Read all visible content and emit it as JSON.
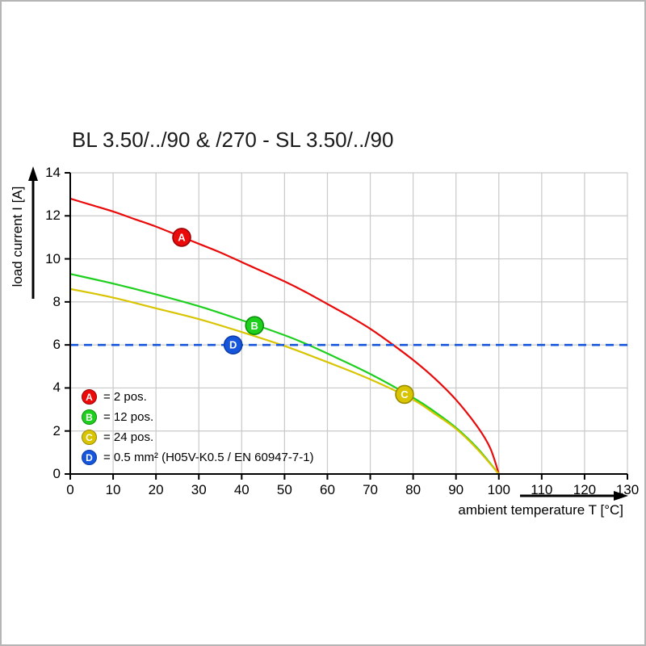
{
  "title": "BL 3.50/../90 & /270 - SL 3.50/../90",
  "axes": {
    "x": {
      "label": "ambient temperature T [°C]"
    },
    "y": {
      "label": "load current I [A]"
    }
  },
  "legend": {
    "items": [
      {
        "key": "A",
        "label": "= 2 pos.",
        "color": "#ea0a0a",
        "edge": "#9e0007"
      },
      {
        "key": "B",
        "label": "= 12 pos.",
        "color": "#1ecf1e",
        "edge": "#0a8f0a"
      },
      {
        "key": "C",
        "label": "= 24 pos.",
        "color": "#d8c400",
        "edge": "#9a8a00"
      },
      {
        "key": "D",
        "label": "= 0.5 mm² (H05V-K0.5 / EN 60947-7-1)",
        "color": "#1556dd",
        "edge": "#0d3da8"
      }
    ]
  },
  "chart_data": {
    "type": "line",
    "title": "BL 3.50/../90 & /270 - SL 3.50/../90",
    "xlabel": "ambient temperature T [°C]",
    "ylabel": "load current I [A]",
    "xlim": [
      0,
      130
    ],
    "ylim": [
      0,
      14
    ],
    "x_ticks": [
      0,
      10,
      20,
      30,
      40,
      50,
      60,
      70,
      80,
      90,
      100,
      110,
      120,
      130
    ],
    "y_ticks": [
      0,
      2,
      4,
      6,
      8,
      10,
      12,
      14
    ],
    "grid": true,
    "grid_color": "#c9c9c9",
    "series": [
      {
        "key": "A",
        "name": "2 pos.",
        "type": "curve",
        "color": "#ea0a0a",
        "edge": "#9e0007",
        "marker_at": [
          26,
          11.0
        ],
        "points": [
          [
            0,
            12.8
          ],
          [
            5,
            12.5
          ],
          [
            10,
            12.2
          ],
          [
            15,
            11.85
          ],
          [
            20,
            11.5
          ],
          [
            25,
            11.1
          ],
          [
            30,
            10.7
          ],
          [
            35,
            10.3
          ],
          [
            40,
            9.85
          ],
          [
            45,
            9.4
          ],
          [
            50,
            8.95
          ],
          [
            55,
            8.45
          ],
          [
            60,
            7.9
          ],
          [
            65,
            7.35
          ],
          [
            70,
            6.75
          ],
          [
            75,
            6.05
          ],
          [
            80,
            5.3
          ],
          [
            85,
            4.45
          ],
          [
            90,
            3.45
          ],
          [
            95,
            2.2
          ],
          [
            98,
            1.2
          ],
          [
            100,
            0
          ]
        ]
      },
      {
        "key": "B",
        "name": "12 pos.",
        "type": "curve",
        "color": "#1ecf1e",
        "edge": "#0a8f0a",
        "marker_at": [
          43,
          6.9
        ],
        "points": [
          [
            0,
            9.3
          ],
          [
            10,
            8.85
          ],
          [
            20,
            8.35
          ],
          [
            30,
            7.8
          ],
          [
            40,
            7.15
          ],
          [
            50,
            6.45
          ],
          [
            55,
            6.05
          ],
          [
            60,
            5.6
          ],
          [
            70,
            4.65
          ],
          [
            80,
            3.55
          ],
          [
            85,
            2.9
          ],
          [
            90,
            2.15
          ],
          [
            95,
            1.2
          ],
          [
            100,
            0
          ]
        ]
      },
      {
        "key": "C",
        "name": "24 pos.",
        "type": "curve",
        "color": "#d8c400",
        "edge": "#9a8a00",
        "marker_at": [
          78,
          3.7
        ],
        "points": [
          [
            0,
            8.6
          ],
          [
            10,
            8.2
          ],
          [
            20,
            7.7
          ],
          [
            30,
            7.2
          ],
          [
            40,
            6.6
          ],
          [
            50,
            5.95
          ],
          [
            60,
            5.2
          ],
          [
            70,
            4.4
          ],
          [
            80,
            3.45
          ],
          [
            85,
            2.8
          ],
          [
            90,
            2.1
          ],
          [
            95,
            1.15
          ],
          [
            100,
            0
          ]
        ]
      },
      {
        "key": "D",
        "name": "0.5 mm² (H05V-K0.5 / EN 60947-7-1)",
        "type": "hline",
        "color": "#1556dd",
        "edge": "#0d3da8",
        "dashed": true,
        "y": 6,
        "x_range": [
          0,
          130
        ],
        "marker_at": [
          38,
          6
        ]
      }
    ]
  }
}
